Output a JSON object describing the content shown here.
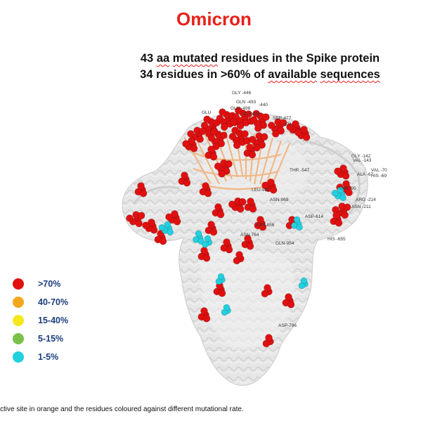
{
  "title": "Omicron",
  "subtitle_line1": {
    "number": "43",
    "aa": "aa",
    "mutated": "mutated",
    "rest": "residues in the Spike protein"
  },
  "subtitle_line2": {
    "start": "34 residues in >60% of",
    "available": "available",
    "sequences": "sequences"
  },
  "residue_labels": [
    "GLY -446",
    "GLN -493",
    "GLN -498",
    "-440",
    "GLU",
    "GLY-496",
    "SER-477",
    "-371",
    "GLY -142",
    "VAL -143",
    "ALA -67",
    "VAL -70",
    "HIS -69",
    "THR -95",
    "ARG -214",
    "ASN -211",
    "THR -547",
    "LEU-981",
    "ASN-969",
    "ASP-614",
    "ASN-856",
    "ASN-764",
    "GLN-954",
    "HIS -655",
    "ASP-796"
  ],
  "legend": [
    {
      "label": ">70%",
      "color": "#e01010"
    },
    {
      "label": "40-70%",
      "color": "#f2a81d"
    },
    {
      "label": "15-40%",
      "color": "#f5e81b"
    },
    {
      "label": "5-15%",
      "color": "#7cc04a"
    },
    {
      "label": "1-5%",
      "color": "#22d0e0"
    }
  ],
  "caption": "ctive site in orange and the residues coloured against different mutational rate.",
  "colors": {
    "title": "#e8201a",
    "structure": "#d9d9d9",
    "active_site": "#f2b27a"
  }
}
